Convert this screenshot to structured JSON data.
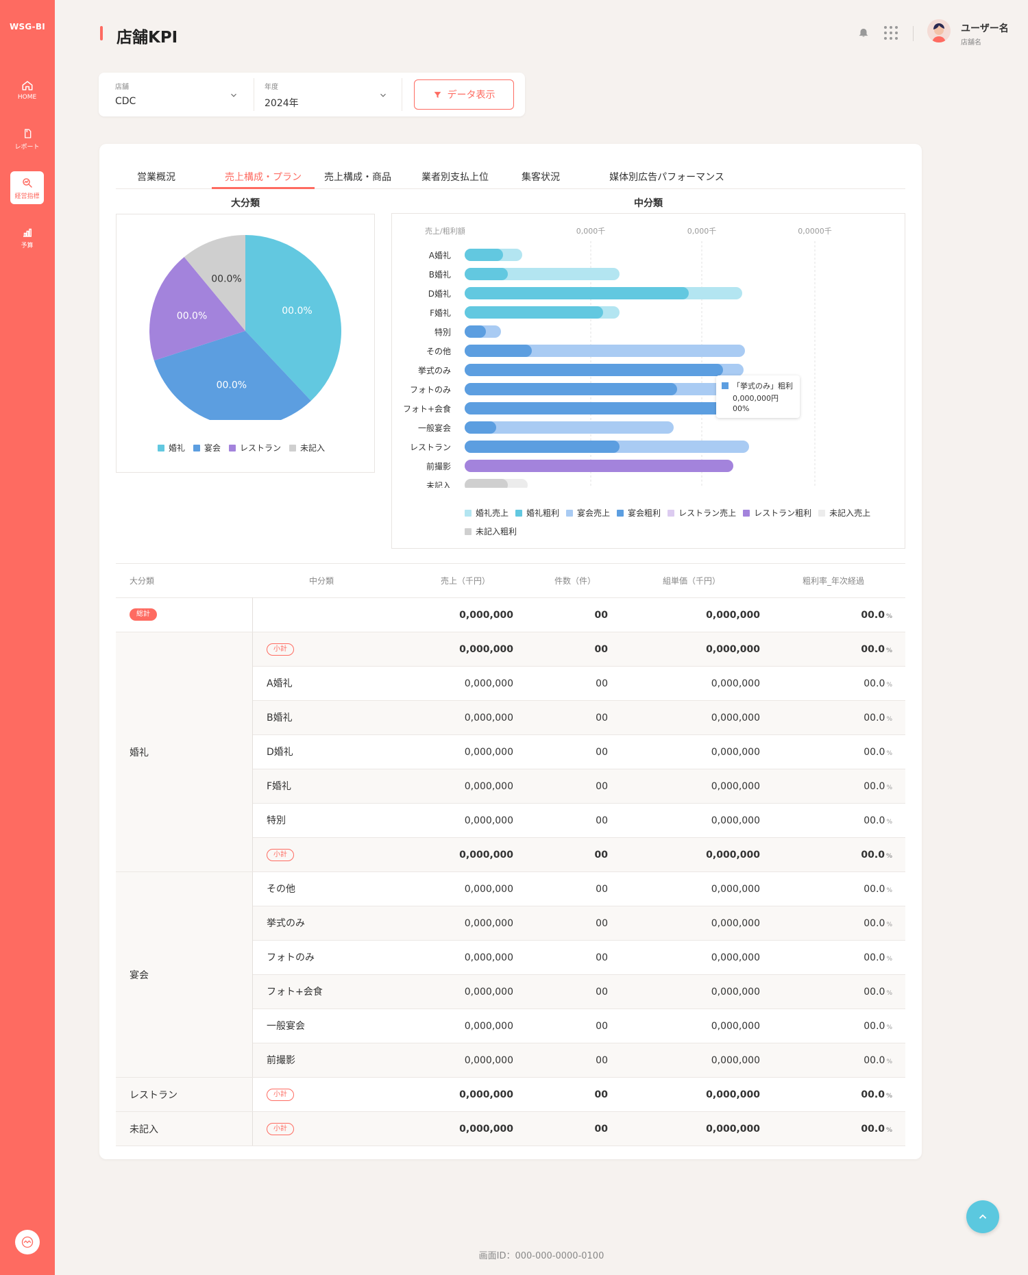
{
  "brand": "WSG-BI",
  "nav": [
    {
      "label": "HOME",
      "icon": "home-icon"
    },
    {
      "label": "レポート",
      "icon": "report-icon"
    },
    {
      "label": "経営指標",
      "icon": "chart-search-icon",
      "active": true
    },
    {
      "label": "予算",
      "icon": "bar-chart-icon"
    }
  ],
  "page_title": "店舗KPI",
  "user": {
    "name": "ユーザー名",
    "store": "店舗名"
  },
  "filters": {
    "store": {
      "caption": "店舗",
      "value": "CDC"
    },
    "year": {
      "caption": "年度",
      "value": "2024年"
    },
    "button": "データ表示"
  },
  "tabs": [
    "営業概況",
    "売上構成・プラン",
    "売上構成・商品",
    "業者別支払上位",
    "集客状況",
    "媒体別広告パフォーマンス"
  ],
  "active_tab": 1,
  "colors": {
    "accent": "#fe6b61",
    "wedding_sales": "#b3e5f1",
    "wedding_profit": "#62c8e0",
    "banquet_sales": "#a9cbf3",
    "banquet_profit": "#5c9ee0",
    "restaurant_sales": "#dccbf0",
    "restaurant_profit": "#a383dc",
    "unrecorded_sales": "#ececec",
    "unrecorded_profit": "#cfcfcf"
  },
  "chart_data": [
    {
      "type": "pie",
      "title": "大分類",
      "categories": [
        "婚礼",
        "宴会",
        "レストラン",
        "未記入"
      ],
      "values": [
        38,
        32,
        19,
        11
      ],
      "labels": [
        "00.0%",
        "00.0%",
        "00.0%",
        "00.0%"
      ],
      "colors": [
        "#62c8e0",
        "#5c9ee0",
        "#a383dc",
        "#cfcfcf"
      ],
      "legend": "bottom"
    },
    {
      "type": "bar",
      "orientation": "horizontal",
      "title": "中分類",
      "xlabel": "売上/粗利額",
      "x_ticks": [
        "0,000千",
        "0,000千",
        "0,0000千"
      ],
      "categories": [
        "A婚礼",
        "B婚礼",
        "D婚礼",
        "F婚礼",
        "特別",
        "その他",
        "挙式のみ",
        "フォトのみ",
        "フォト+会食",
        "一般宴会",
        "レストラン",
        "前撮影",
        "未記入"
      ],
      "series": [
        {
          "name": "売上",
          "values": [
            84,
            226,
            405,
            226,
            53,
            409,
            407,
            398,
            435,
            305,
            415,
            392,
            92
          ]
        },
        {
          "name": "粗利",
          "values": [
            56,
            63,
            327,
            202,
            31,
            98,
            377,
            310,
            435,
            46,
            226,
            392,
            63
          ]
        }
      ],
      "groups": [
        "wedding",
        "wedding",
        "wedding",
        "wedding",
        "banquet",
        "banquet",
        "banquet",
        "banquet",
        "banquet",
        "banquet",
        "banquet",
        "restaurant",
        "unrecorded"
      ],
      "xlim": [
        0,
        470
      ],
      "tooltip": {
        "title": "「挙式のみ」粗利",
        "value": "0,000,000円",
        "pct": "00%"
      },
      "legend_entries": [
        "婚礼売上",
        "婚礼粗利",
        "宴会売上",
        "宴会粗利",
        "レストラン売上",
        "レストラン粗利",
        "未記入売上",
        "未記入粗利"
      ],
      "legend": "bottom"
    }
  ],
  "table": {
    "headers": [
      "大分類",
      "中分類",
      "売上（千円）",
      "件数（件）",
      "組単価（千円）",
      "粗利率_年次経過"
    ],
    "total_badge": "総計",
    "subtotal_badge": "小計",
    "pct_unit": "%",
    "rows": [
      {
        "type": "total",
        "sales": "0,000,000",
        "count": "00",
        "unit": "0,000,000",
        "rate": "00.0"
      },
      {
        "type": "subtotal",
        "sales": "0,000,000",
        "count": "00",
        "unit": "0,000,000",
        "rate": "00.0"
      },
      {
        "type": "item",
        "name": "A婚礼",
        "sales": "0,000,000",
        "count": "00",
        "unit": "0,000,000",
        "rate": "00.0"
      },
      {
        "type": "item",
        "name": "B婚礼",
        "sales": "0,000,000",
        "count": "00",
        "unit": "0,000,000",
        "rate": "00.0"
      },
      {
        "type": "item",
        "name": "D婚礼",
        "sales": "0,000,000",
        "count": "00",
        "unit": "0,000,000",
        "rate": "00.0"
      },
      {
        "type": "item",
        "name": "F婚礼",
        "sales": "0,000,000",
        "count": "00",
        "unit": "0,000,000",
        "rate": "00.0"
      },
      {
        "type": "item",
        "name": "特別",
        "sales": "0,000,000",
        "count": "00",
        "unit": "0,000,000",
        "rate": "00.0"
      },
      {
        "type": "subtotal",
        "sales": "0,000,000",
        "count": "00",
        "unit": "0,000,000",
        "rate": "00.0"
      },
      {
        "type": "item",
        "name": "その他",
        "sales": "0,000,000",
        "count": "00",
        "unit": "0,000,000",
        "rate": "00.0"
      },
      {
        "type": "item",
        "name": "挙式のみ",
        "sales": "0,000,000",
        "count": "00",
        "unit": "0,000,000",
        "rate": "00.0"
      },
      {
        "type": "item",
        "name": "フォトのみ",
        "sales": "0,000,000",
        "count": "00",
        "unit": "0,000,000",
        "rate": "00.0"
      },
      {
        "type": "item",
        "name": "フォト+会食",
        "sales": "0,000,000",
        "count": "00",
        "unit": "0,000,000",
        "rate": "00.0"
      },
      {
        "type": "item",
        "name": "一般宴会",
        "sales": "0,000,000",
        "count": "00",
        "unit": "0,000,000",
        "rate": "00.0"
      },
      {
        "type": "item",
        "name": "前撮影",
        "sales": "0,000,000",
        "count": "00",
        "unit": "0,000,000",
        "rate": "00.0"
      },
      {
        "type": "subtotal",
        "sales": "0,000,000",
        "count": "00",
        "unit": "0,000,000",
        "rate": "00.0"
      },
      {
        "type": "subtotal",
        "sales": "0,000,000",
        "count": "00",
        "unit": "0,000,000",
        "rate": "00.0"
      }
    ],
    "categories": [
      {
        "label": "婚礼",
        "from": 1,
        "to": 7
      },
      {
        "label": "宴会",
        "from": 8,
        "to": 13
      },
      {
        "label": "レストラン",
        "from": 14,
        "to": 14
      },
      {
        "label": "未記入",
        "from": 15,
        "to": 15
      }
    ]
  },
  "footer": "画面ID：000-000-0000-0100"
}
